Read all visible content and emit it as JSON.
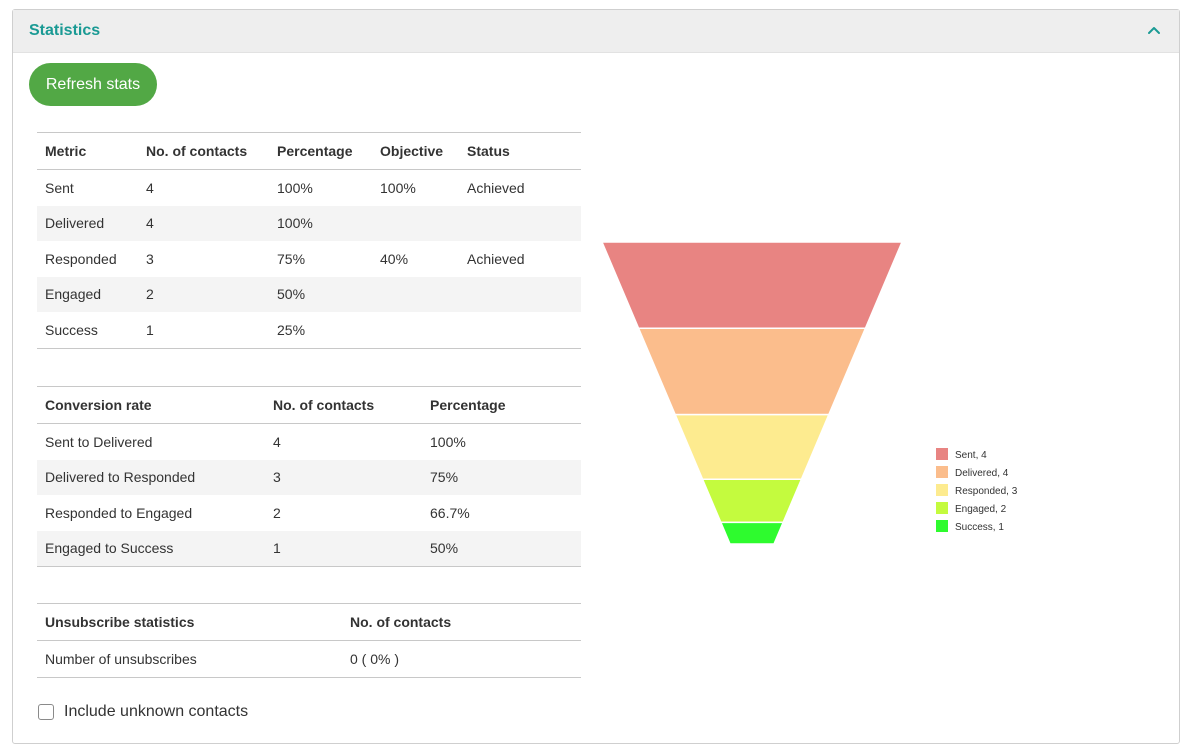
{
  "panel": {
    "title": "Statistics",
    "collapse_icon": "chevron-up-icon",
    "refresh_label": "Refresh stats"
  },
  "metrics_table": {
    "headers": [
      "Metric",
      "No. of contacts",
      "Percentage",
      "Objective",
      "Status"
    ],
    "rows": [
      [
        "Sent",
        "4",
        "100%",
        "100%",
        "Achieved"
      ],
      [
        "Delivered",
        "4",
        "100%",
        "",
        ""
      ],
      [
        "Responded",
        "3",
        "75%",
        "40%",
        "Achieved"
      ],
      [
        "Engaged",
        "2",
        "50%",
        "",
        ""
      ],
      [
        "Success",
        "1",
        "25%",
        "",
        ""
      ]
    ]
  },
  "conversion_table": {
    "headers": [
      "Conversion rate",
      "No. of contacts",
      "Percentage"
    ],
    "rows": [
      [
        "Sent to Delivered",
        "4",
        "100%"
      ],
      [
        "Delivered to Responded",
        "3",
        "75%"
      ],
      [
        "Responded to Engaged",
        "2",
        "66.7%"
      ],
      [
        "Engaged to Success",
        "1",
        "50%"
      ]
    ]
  },
  "unsubscribe_table": {
    "headers": [
      "Unsubscribe statistics",
      "No. of contacts"
    ],
    "rows": [
      [
        "Number of unsubscribes",
        "0 ( 0% )"
      ]
    ]
  },
  "include_unknown_label": "Include unknown contacts",
  "include_unknown_checked": false,
  "colors": {
    "accent": "#1a9a94",
    "button": "#52a845",
    "achieved": "#2e8b1f"
  },
  "chart_data": {
    "type": "funnel",
    "title": "",
    "categories": [
      "Sent",
      "Delivered",
      "Responded",
      "Engaged",
      "Success"
    ],
    "values": [
      4,
      4,
      3,
      2,
      1
    ],
    "legend_labels": [
      "Sent, 4",
      "Delivered, 4",
      "Responded, 3",
      "Engaged, 2",
      "Success, 1"
    ],
    "colors": [
      "#e88482",
      "#fbbd8c",
      "#fdeb8f",
      "#c4fb3e",
      "#2efb2e"
    ],
    "legend_position": "right"
  }
}
